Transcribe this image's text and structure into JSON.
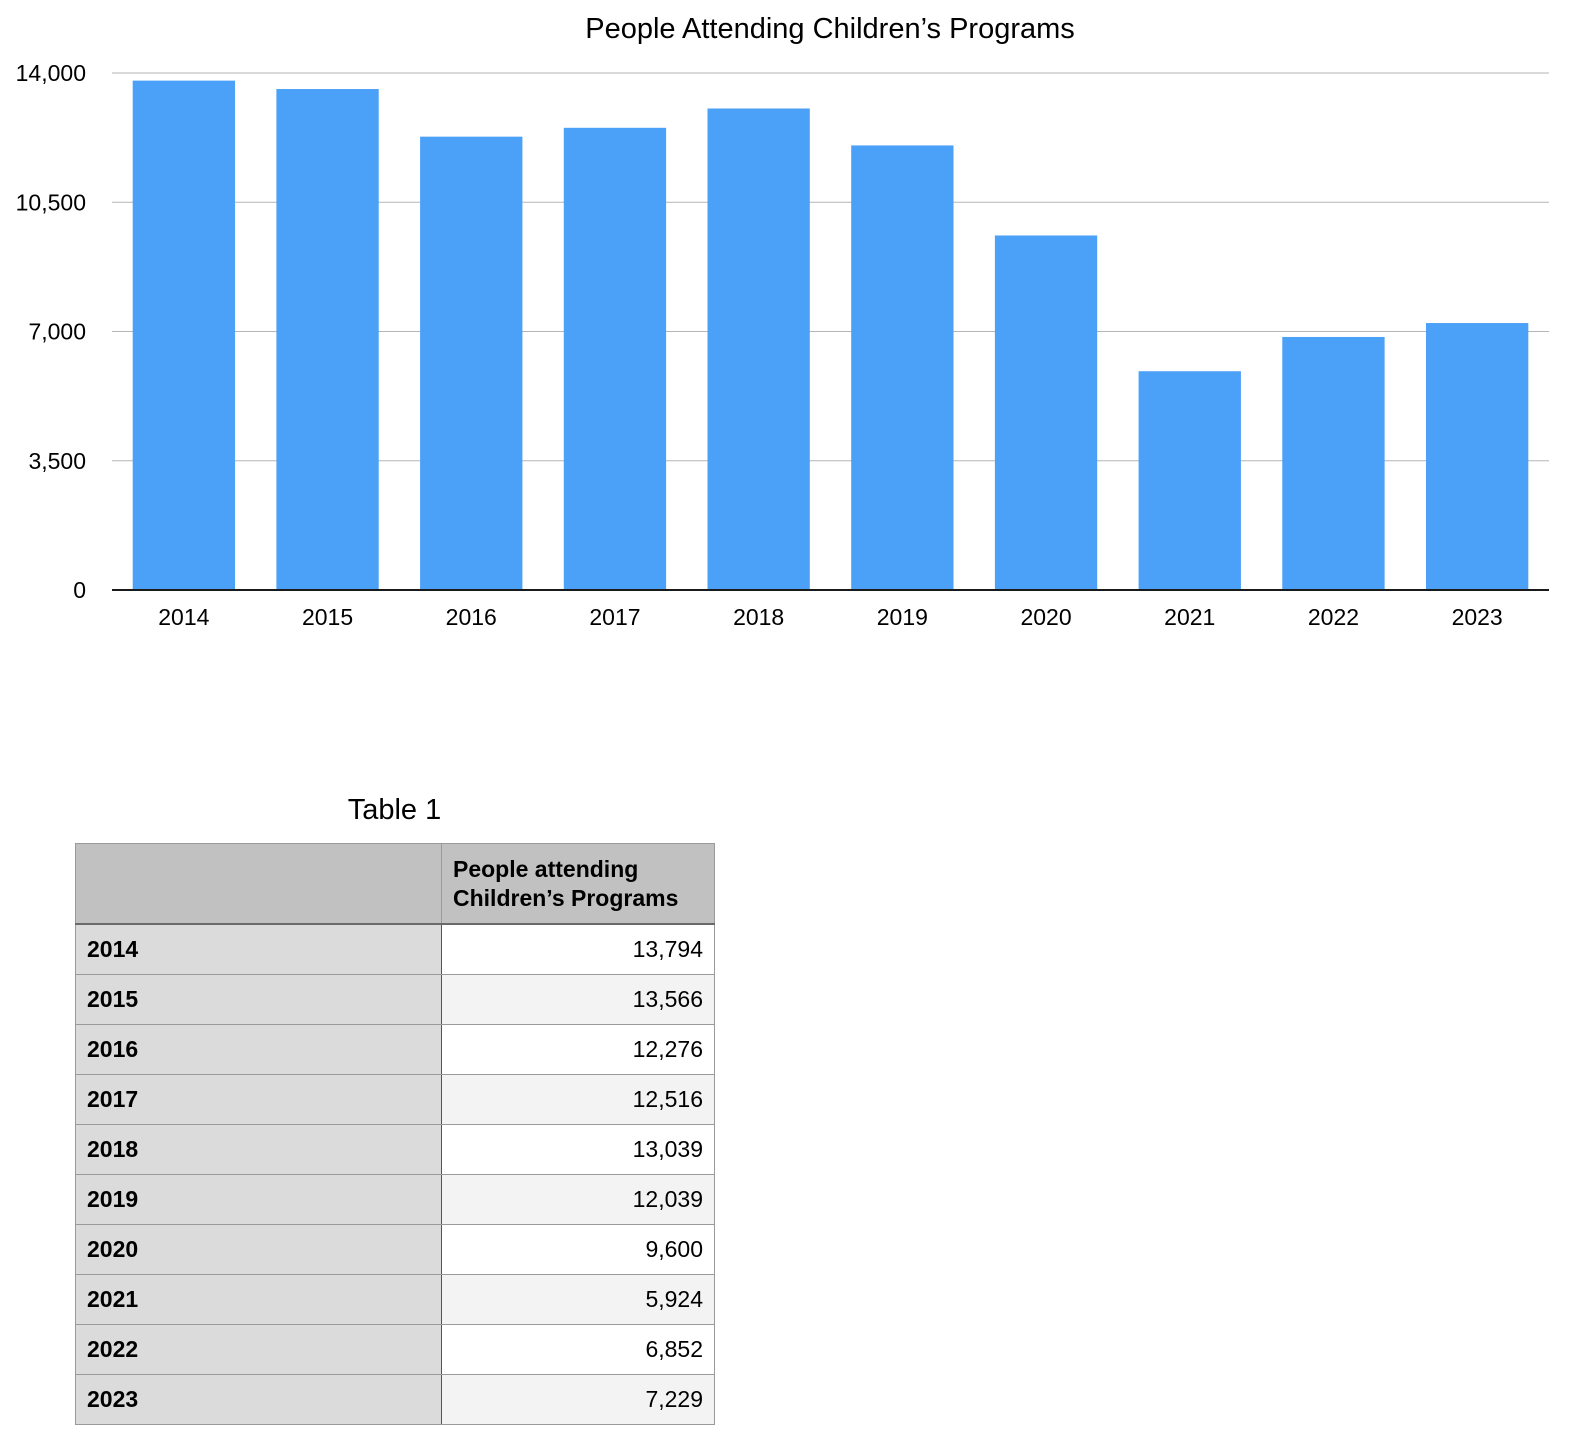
{
  "chart_data": {
    "type": "bar",
    "title": "People Attending Children’s Programs",
    "xlabel": "",
    "ylabel": "",
    "categories": [
      "2014",
      "2015",
      "2016",
      "2017",
      "2018",
      "2019",
      "2020",
      "2021",
      "2022",
      "2023"
    ],
    "values": [
      13794,
      13566,
      12276,
      12516,
      13039,
      12039,
      9600,
      5924,
      6852,
      7229
    ],
    "ylim": [
      0,
      14000
    ],
    "yticks": [
      0,
      3500,
      7000,
      10500,
      14000
    ],
    "ytick_labels": [
      "0",
      "3,500",
      "7,000",
      "10,500",
      "14,000"
    ],
    "grid": true,
    "legend": "none",
    "bar_color": "#4ba0f8"
  },
  "table": {
    "title": "Table 1",
    "header": [
      "",
      "People attending Children’s Programs"
    ],
    "rows": [
      {
        "year": "2014",
        "value": "13,794"
      },
      {
        "year": "2015",
        "value": "13,566"
      },
      {
        "year": "2016",
        "value": "12,276"
      },
      {
        "year": "2017",
        "value": "12,516"
      },
      {
        "year": "2018",
        "value": "13,039"
      },
      {
        "year": "2019",
        "value": "12,039"
      },
      {
        "year": "2020",
        "value": "9,600"
      },
      {
        "year": "2021",
        "value": "5,924"
      },
      {
        "year": "2022",
        "value": "6,852"
      },
      {
        "year": "2023",
        "value": "7,229"
      }
    ]
  }
}
